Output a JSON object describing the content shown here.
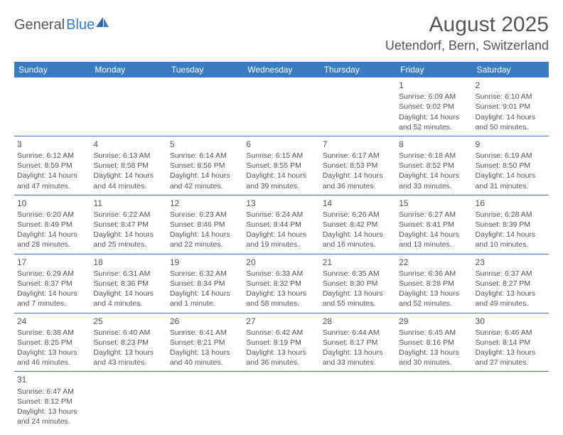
{
  "brand": {
    "part1": "General",
    "part2": "Blue"
  },
  "title": "August 2025",
  "location": "Uetendorf, Bern, Switzerland",
  "colors": {
    "header_bg": "#3a7cc0",
    "header_text": "#ffffff",
    "body_text": "#555555",
    "border": "#3a7cc0",
    "page_bg": "#ffffff"
  },
  "weekdays": [
    "Sunday",
    "Monday",
    "Tuesday",
    "Wednesday",
    "Thursday",
    "Friday",
    "Saturday"
  ],
  "weeks": [
    [
      null,
      null,
      null,
      null,
      null,
      {
        "day": "1",
        "sunrise": "Sunrise: 6:09 AM",
        "sunset": "Sunset: 9:02 PM",
        "daylight": "Daylight: 14 hours and 52 minutes."
      },
      {
        "day": "2",
        "sunrise": "Sunrise: 6:10 AM",
        "sunset": "Sunset: 9:01 PM",
        "daylight": "Daylight: 14 hours and 50 minutes."
      }
    ],
    [
      {
        "day": "3",
        "sunrise": "Sunrise: 6:12 AM",
        "sunset": "Sunset: 8:59 PM",
        "daylight": "Daylight: 14 hours and 47 minutes."
      },
      {
        "day": "4",
        "sunrise": "Sunrise: 6:13 AM",
        "sunset": "Sunset: 8:58 PM",
        "daylight": "Daylight: 14 hours and 44 minutes."
      },
      {
        "day": "5",
        "sunrise": "Sunrise: 6:14 AM",
        "sunset": "Sunset: 8:56 PM",
        "daylight": "Daylight: 14 hours and 42 minutes."
      },
      {
        "day": "6",
        "sunrise": "Sunrise: 6:15 AM",
        "sunset": "Sunset: 8:55 PM",
        "daylight": "Daylight: 14 hours and 39 minutes."
      },
      {
        "day": "7",
        "sunrise": "Sunrise: 6:17 AM",
        "sunset": "Sunset: 8:53 PM",
        "daylight": "Daylight: 14 hours and 36 minutes."
      },
      {
        "day": "8",
        "sunrise": "Sunrise: 6:18 AM",
        "sunset": "Sunset: 8:52 PM",
        "daylight": "Daylight: 14 hours and 33 minutes."
      },
      {
        "day": "9",
        "sunrise": "Sunrise: 6:19 AM",
        "sunset": "Sunset: 8:50 PM",
        "daylight": "Daylight: 14 hours and 31 minutes."
      }
    ],
    [
      {
        "day": "10",
        "sunrise": "Sunrise: 6:20 AM",
        "sunset": "Sunset: 8:49 PM",
        "daylight": "Daylight: 14 hours and 28 minutes."
      },
      {
        "day": "11",
        "sunrise": "Sunrise: 6:22 AM",
        "sunset": "Sunset: 8:47 PM",
        "daylight": "Daylight: 14 hours and 25 minutes."
      },
      {
        "day": "12",
        "sunrise": "Sunrise: 6:23 AM",
        "sunset": "Sunset: 8:46 PM",
        "daylight": "Daylight: 14 hours and 22 minutes."
      },
      {
        "day": "13",
        "sunrise": "Sunrise: 6:24 AM",
        "sunset": "Sunset: 8:44 PM",
        "daylight": "Daylight: 14 hours and 19 minutes."
      },
      {
        "day": "14",
        "sunrise": "Sunrise: 6:26 AM",
        "sunset": "Sunset: 8:42 PM",
        "daylight": "Daylight: 14 hours and 16 minutes."
      },
      {
        "day": "15",
        "sunrise": "Sunrise: 6:27 AM",
        "sunset": "Sunset: 8:41 PM",
        "daylight": "Daylight: 14 hours and 13 minutes."
      },
      {
        "day": "16",
        "sunrise": "Sunrise: 6:28 AM",
        "sunset": "Sunset: 8:39 PM",
        "daylight": "Daylight: 14 hours and 10 minutes."
      }
    ],
    [
      {
        "day": "17",
        "sunrise": "Sunrise: 6:29 AM",
        "sunset": "Sunset: 8:37 PM",
        "daylight": "Daylight: 14 hours and 7 minutes."
      },
      {
        "day": "18",
        "sunrise": "Sunrise: 6:31 AM",
        "sunset": "Sunset: 8:36 PM",
        "daylight": "Daylight: 14 hours and 4 minutes."
      },
      {
        "day": "19",
        "sunrise": "Sunrise: 6:32 AM",
        "sunset": "Sunset: 8:34 PM",
        "daylight": "Daylight: 14 hours and 1 minute."
      },
      {
        "day": "20",
        "sunrise": "Sunrise: 6:33 AM",
        "sunset": "Sunset: 8:32 PM",
        "daylight": "Daylight: 13 hours and 58 minutes."
      },
      {
        "day": "21",
        "sunrise": "Sunrise: 6:35 AM",
        "sunset": "Sunset: 8:30 PM",
        "daylight": "Daylight: 13 hours and 55 minutes."
      },
      {
        "day": "22",
        "sunrise": "Sunrise: 6:36 AM",
        "sunset": "Sunset: 8:28 PM",
        "daylight": "Daylight: 13 hours and 52 minutes."
      },
      {
        "day": "23",
        "sunrise": "Sunrise: 6:37 AM",
        "sunset": "Sunset: 8:27 PM",
        "daylight": "Daylight: 13 hours and 49 minutes."
      }
    ],
    [
      {
        "day": "24",
        "sunrise": "Sunrise: 6:38 AM",
        "sunset": "Sunset: 8:25 PM",
        "daylight": "Daylight: 13 hours and 46 minutes."
      },
      {
        "day": "25",
        "sunrise": "Sunrise: 6:40 AM",
        "sunset": "Sunset: 8:23 PM",
        "daylight": "Daylight: 13 hours and 43 minutes."
      },
      {
        "day": "26",
        "sunrise": "Sunrise: 6:41 AM",
        "sunset": "Sunset: 8:21 PM",
        "daylight": "Daylight: 13 hours and 40 minutes."
      },
      {
        "day": "27",
        "sunrise": "Sunrise: 6:42 AM",
        "sunset": "Sunset: 8:19 PM",
        "daylight": "Daylight: 13 hours and 36 minutes."
      },
      {
        "day": "28",
        "sunrise": "Sunrise: 6:44 AM",
        "sunset": "Sunset: 8:17 PM",
        "daylight": "Daylight: 13 hours and 33 minutes."
      },
      {
        "day": "29",
        "sunrise": "Sunrise: 6:45 AM",
        "sunset": "Sunset: 8:16 PM",
        "daylight": "Daylight: 13 hours and 30 minutes."
      },
      {
        "day": "30",
        "sunrise": "Sunrise: 6:46 AM",
        "sunset": "Sunset: 8:14 PM",
        "daylight": "Daylight: 13 hours and 27 minutes."
      }
    ],
    [
      {
        "day": "31",
        "sunrise": "Sunrise: 6:47 AM",
        "sunset": "Sunset: 8:12 PM",
        "daylight": "Daylight: 13 hours and 24 minutes."
      },
      null,
      null,
      null,
      null,
      null,
      null
    ]
  ]
}
